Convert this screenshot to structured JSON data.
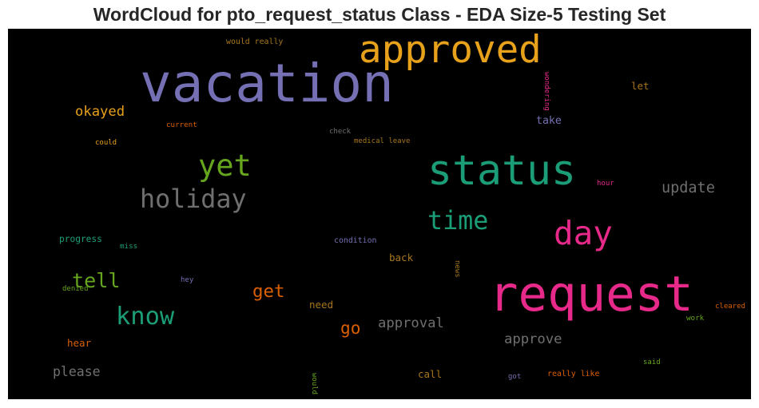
{
  "chart_data": {
    "type": "wordcloud",
    "title": "WordCloud for pto_request_status Class - EDA Size-5 Testing Set",
    "background": "#000000",
    "palette": [
      "#7570b3",
      "#e7a11b",
      "#1b9e77",
      "#e7298a",
      "#66a61e",
      "#d95f02",
      "#a6761d",
      "#6f6f6f"
    ],
    "words": [
      {
        "text": "vacation",
        "weight": 1.0,
        "color": "#7570b3",
        "orientation": "horizontal"
      },
      {
        "text": "request",
        "weight": 0.92,
        "color": "#e7298a",
        "orientation": "horizontal"
      },
      {
        "text": "status",
        "weight": 0.78,
        "color": "#1b9e77",
        "orientation": "horizontal"
      },
      {
        "text": "approved",
        "weight": 0.72,
        "color": "#e7a11b",
        "orientation": "horizontal"
      },
      {
        "text": "day",
        "weight": 0.62,
        "color": "#e7298a",
        "orientation": "horizontal"
      },
      {
        "text": "yet",
        "weight": 0.56,
        "color": "#66a61e",
        "orientation": "horizontal"
      },
      {
        "text": "holiday",
        "weight": 0.48,
        "color": "#6f6f6f",
        "orientation": "horizontal"
      },
      {
        "text": "time",
        "weight": 0.48,
        "color": "#1b9e77",
        "orientation": "horizontal"
      },
      {
        "text": "know",
        "weight": 0.46,
        "color": "#1b9e77",
        "orientation": "horizontal"
      },
      {
        "text": "tell",
        "weight": 0.38,
        "color": "#66a61e",
        "orientation": "horizontal"
      },
      {
        "text": "get",
        "weight": 0.34,
        "color": "#d95f02",
        "orientation": "horizontal"
      },
      {
        "text": "go",
        "weight": 0.32,
        "color": "#d95f02",
        "orientation": "horizontal"
      },
      {
        "text": "update",
        "weight": 0.28,
        "color": "#6f6f6f",
        "orientation": "horizontal"
      },
      {
        "text": "okayed",
        "weight": 0.26,
        "color": "#e7a11b",
        "orientation": "horizontal"
      },
      {
        "text": "approval",
        "weight": 0.26,
        "color": "#6f6f6f",
        "orientation": "horizontal"
      },
      {
        "text": "approve",
        "weight": 0.26,
        "color": "#6f6f6f",
        "orientation": "horizontal"
      },
      {
        "text": "please",
        "weight": 0.25,
        "color": "#6f6f6f",
        "orientation": "horizontal"
      },
      {
        "text": "take",
        "weight": 0.2,
        "color": "#7570b3",
        "orientation": "horizontal"
      },
      {
        "text": "let",
        "weight": 0.19,
        "color": "#a6761d",
        "orientation": "horizontal"
      },
      {
        "text": "back",
        "weight": 0.19,
        "color": "#a6761d",
        "orientation": "horizontal"
      },
      {
        "text": "need",
        "weight": 0.19,
        "color": "#a6761d",
        "orientation": "horizontal"
      },
      {
        "text": "hear",
        "weight": 0.19,
        "color": "#d95f02",
        "orientation": "horizontal"
      },
      {
        "text": "call",
        "weight": 0.19,
        "color": "#a6761d",
        "orientation": "horizontal"
      },
      {
        "text": "progress",
        "weight": 0.17,
        "color": "#1b9e77",
        "orientation": "horizontal"
      },
      {
        "text": "condition",
        "weight": 0.15,
        "color": "#7570b3",
        "orientation": "horizontal"
      },
      {
        "text": "would really",
        "weight": 0.15,
        "color": "#a6761d",
        "orientation": "horizontal"
      },
      {
        "text": "really like",
        "weight": 0.15,
        "color": "#d95f02",
        "orientation": "horizontal"
      },
      {
        "text": "current",
        "weight": 0.14,
        "color": "#d95f02",
        "orientation": "horizontal"
      },
      {
        "text": "miss",
        "weight": 0.14,
        "color": "#1b9e77",
        "orientation": "horizontal"
      },
      {
        "text": "work",
        "weight": 0.14,
        "color": "#66a61e",
        "orientation": "horizontal"
      },
      {
        "text": "medical leave",
        "weight": 0.11,
        "color": "#a6761d",
        "orientation": "horizontal"
      },
      {
        "text": "check",
        "weight": 0.11,
        "color": "#6f6f6f",
        "orientation": "horizontal"
      },
      {
        "text": "could",
        "weight": 0.11,
        "color": "#e7a11b",
        "orientation": "horizontal"
      },
      {
        "text": "hour",
        "weight": 0.11,
        "color": "#e7298a",
        "orientation": "horizontal"
      },
      {
        "text": "cleared",
        "weight": 0.11,
        "color": "#d95f02",
        "orientation": "horizontal"
      },
      {
        "text": "hey",
        "weight": 0.1,
        "color": "#7570b3",
        "orientation": "horizontal"
      },
      {
        "text": "denied",
        "weight": 0.1,
        "color": "#66a61e",
        "orientation": "horizontal"
      },
      {
        "text": "said",
        "weight": 0.1,
        "color": "#66a61e",
        "orientation": "horizontal"
      },
      {
        "text": "got",
        "weight": 0.1,
        "color": "#7570b3",
        "orientation": "horizontal"
      },
      {
        "text": "wondering",
        "weight": 0.1,
        "color": "#e7298a",
        "orientation": "vertical"
      },
      {
        "text": "news",
        "weight": 0.09,
        "color": "#a6761d",
        "orientation": "vertical"
      },
      {
        "text": "would",
        "weight": 0.1,
        "color": "#66a61e",
        "orientation": "vertical"
      }
    ]
  }
}
